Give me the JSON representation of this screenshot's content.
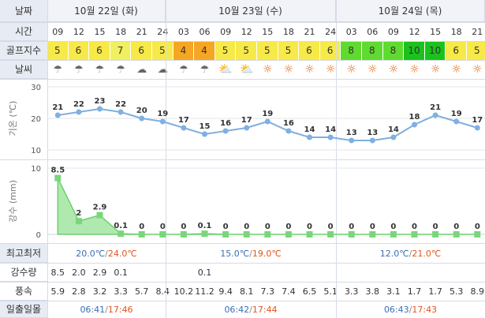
{
  "labels": {
    "date": "날짜",
    "time": "시간",
    "golf": "골프지수",
    "weather": "날씨",
    "temp_axis": "기온 (℃)",
    "rain_axis": "강수 (mm)",
    "minmax": "최고최저",
    "rain": "강수량",
    "wind": "풍속",
    "sun": "일출일몰"
  },
  "days": [
    {
      "label": "10월 22일 (화)",
      "minmax": {
        "min": "20.0℃",
        "sep": "/",
        "max": "24.0℃"
      },
      "sunrise": "06:41",
      "sep": "/",
      "sunset": "17:46"
    },
    {
      "label": "10월 23일 (수)",
      "minmax": {
        "min": "15.0℃",
        "sep": "/",
        "max": "19.0℃"
      },
      "sunrise": "06:42",
      "sep": "/",
      "sunset": "17:44"
    },
    {
      "label": "10월 24일 (목)",
      "minmax": {
        "min": "12.0℃",
        "sep": "/",
        "max": "21.0℃"
      },
      "sunrise": "06:43",
      "sep": "/",
      "sunset": "17:43"
    }
  ],
  "times": [
    "09",
    "12",
    "15",
    "18",
    "21",
    "24",
    "03",
    "06",
    "09",
    "12",
    "15",
    "18",
    "21",
    "24",
    "03",
    "06",
    "09",
    "12",
    "15",
    "18",
    "21"
  ],
  "golf": [
    "5",
    "6",
    "6",
    "7",
    "6",
    "5",
    "4",
    "4",
    "5",
    "5",
    "5",
    "5",
    "6",
    "6",
    "8",
    "8",
    "8",
    "10",
    "10",
    "6",
    "5"
  ],
  "golf_colors": {
    "4": "#f5a623",
    "5": "#f7e948",
    "6": "#f7e948",
    "7": "#f0f060",
    "8": "#5fdb2f",
    "10": "#1cc21c"
  },
  "weather": [
    "rain-cloud-icon",
    "rain-cloud-icon",
    "rain-cloud-icon",
    "rain-cloud-icon",
    "cloud-icon",
    "cloud-icon",
    "rain-cloud-icon",
    "rain-cloud-icon",
    "partly-sunny-icon",
    "partly-sunny-icon",
    "sun-icon",
    "sun-icon",
    "sun-icon",
    "sun-icon",
    "sun-icon",
    "sun-icon",
    "sun-icon",
    "sun-icon",
    "sun-icon",
    "sun-icon",
    "sun-icon"
  ],
  "chart_data": [
    {
      "type": "line",
      "title": "",
      "ylabel": "기온 (℃)",
      "ylim": [
        10,
        30
      ],
      "yticks": [
        "10",
        "20",
        "30"
      ],
      "x": [
        "09",
        "12",
        "15",
        "18",
        "21",
        "24",
        "03",
        "06",
        "09",
        "12",
        "15",
        "18",
        "21",
        "24",
        "03",
        "06",
        "09",
        "12",
        "15",
        "18",
        "21"
      ],
      "values": [
        21,
        22,
        23,
        22,
        20,
        19,
        17,
        15,
        16,
        17,
        19,
        16,
        14,
        14,
        13,
        13,
        14,
        18,
        21,
        19,
        17
      ],
      "color": "#7fb0e0"
    },
    {
      "type": "area",
      "title": "",
      "ylabel": "강수 (mm)",
      "ylim": [
        0,
        10
      ],
      "yticks": [
        "0",
        "10"
      ],
      "x": [
        "09",
        "12",
        "15",
        "18",
        "21",
        "24",
        "03",
        "06",
        "09",
        "12",
        "15",
        "18",
        "21",
        "24",
        "03",
        "06",
        "09",
        "12",
        "15",
        "18",
        "21"
      ],
      "values": [
        8.5,
        2,
        2.9,
        0.1,
        0,
        0,
        0,
        0.1,
        0,
        0,
        0,
        0,
        0,
        0,
        0,
        0,
        0,
        0,
        0,
        0,
        0
      ],
      "value_labels": [
        "8.5",
        "2",
        "2.9",
        "0.1",
        "0",
        "0",
        "0",
        "0.1",
        "0",
        "0",
        "0",
        "0",
        "0",
        "0",
        "0",
        "0",
        "0",
        "0",
        "0",
        "0",
        "0"
      ],
      "color": "#8fe08f"
    }
  ],
  "rain_amounts": [
    "8.5",
    "2.0",
    "2.9",
    "0.1",
    "",
    "",
    "",
    "0.1",
    "",
    "",
    "",
    "",
    "",
    "",
    "",
    "",
    "",
    "",
    "",
    "",
    ""
  ],
  "wind": [
    "5.9",
    "2.8",
    "3.2",
    "3.3",
    "5.7",
    "8.4",
    "10.2",
    "11.2",
    "9.4",
    "8.1",
    "7.3",
    "7.4",
    "6.5",
    "5.1",
    "3.3",
    "3.8",
    "3.1",
    "1.7",
    "1.7",
    "5.3",
    "8.9"
  ]
}
